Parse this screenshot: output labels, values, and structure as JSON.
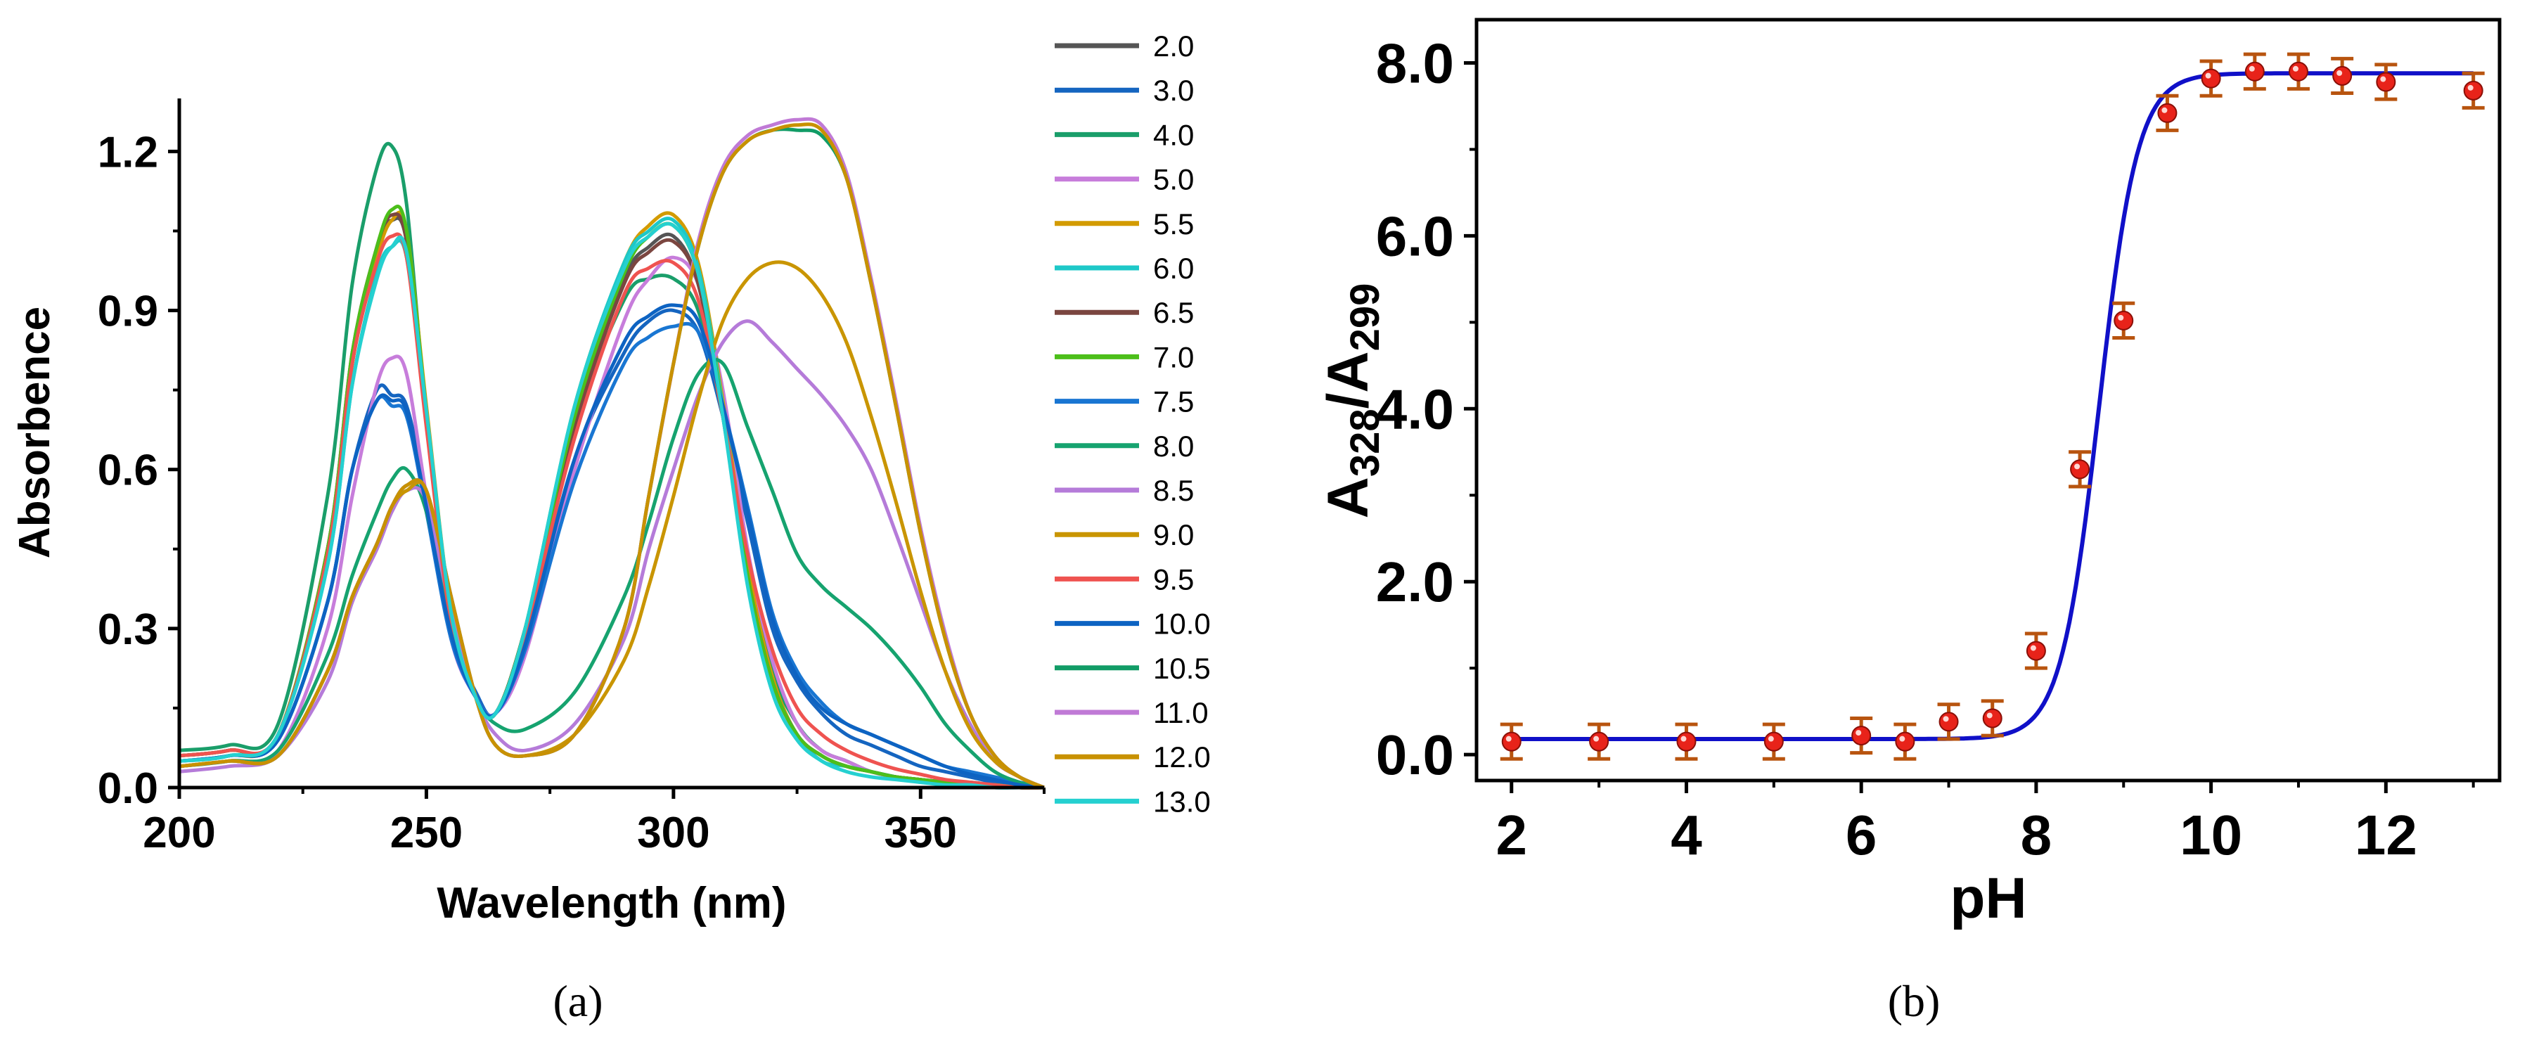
{
  "figure": {
    "panel_a_label": "(a)",
    "panel_b_label": "(b)"
  },
  "chart_data": [
    {
      "id": "a",
      "type": "line",
      "xlabel": "Wavelength (nm)",
      "ylabel": "Absorbence",
      "xlim": [
        200,
        375
      ],
      "ylim": [
        0,
        1.3
      ],
      "xticks": [
        200,
        250,
        300,
        350
      ],
      "xtick_labels": [
        "200",
        "250",
        "300",
        "350"
      ],
      "yticks": [
        0,
        0.3,
        0.6,
        0.9,
        1.2
      ],
      "ytick_labels": [
        "0.0",
        "0.3",
        "0.6",
        "0.9",
        "1.2"
      ],
      "grid": false,
      "legend_position": "right",
      "x": [
        200,
        210,
        220,
        230,
        235,
        240,
        243,
        246,
        250,
        255,
        260,
        264,
        270,
        280,
        290,
        295,
        300,
        305,
        310,
        315,
        320,
        325,
        330,
        335,
        340,
        345,
        350,
        355,
        360,
        365,
        370,
        375
      ],
      "series": [
        {
          "name": "2.0",
          "color": "#555555",
          "values": [
            0.06,
            0.07,
            0.1,
            0.45,
            0.8,
            1.02,
            1.07,
            1.03,
            0.7,
            0.32,
            0.17,
            0.14,
            0.3,
            0.7,
            0.96,
            1.02,
            1.04,
            0.95,
            0.7,
            0.4,
            0.2,
            0.1,
            0.06,
            0.04,
            0.03,
            0.02,
            0.015,
            0.01,
            0.01,
            0.005,
            0.005,
            0.0
          ]
        },
        {
          "name": "3.0",
          "color": "#1565c0",
          "values": [
            0.05,
            0.06,
            0.09,
            0.35,
            0.6,
            0.75,
            0.74,
            0.72,
            0.55,
            0.3,
            0.18,
            0.14,
            0.28,
            0.62,
            0.82,
            0.88,
            0.9,
            0.86,
            0.7,
            0.5,
            0.3,
            0.2,
            0.14,
            0.1,
            0.08,
            0.06,
            0.04,
            0.03,
            0.02,
            0.01,
            0.005,
            0.0
          ]
        },
        {
          "name": "4.0",
          "color": "#1a9e6a",
          "values": [
            0.07,
            0.08,
            0.12,
            0.55,
            0.95,
            1.17,
            1.21,
            1.1,
            0.7,
            0.32,
            0.17,
            0.14,
            0.3,
            0.68,
            0.92,
            0.96,
            0.96,
            0.9,
            0.7,
            0.42,
            0.22,
            0.12,
            0.07,
            0.05,
            0.03,
            0.02,
            0.015,
            0.01,
            0.005,
            0.005,
            0.0,
            0.0
          ]
        },
        {
          "name": "5.0",
          "color": "#c77ddb",
          "values": [
            0.04,
            0.05,
            0.07,
            0.3,
            0.55,
            0.76,
            0.81,
            0.78,
            0.55,
            0.28,
            0.17,
            0.14,
            0.25,
            0.6,
            0.88,
            0.96,
            1.0,
            0.95,
            0.75,
            0.45,
            0.24,
            0.12,
            0.07,
            0.05,
            0.03,
            0.02,
            0.015,
            0.01,
            0.005,
            0.005,
            0.0,
            0.0
          ]
        },
        {
          "name": "5.5",
          "color": "#d39b00",
          "values": [
            0.05,
            0.06,
            0.1,
            0.45,
            0.8,
            1.0,
            1.07,
            1.05,
            0.72,
            0.33,
            0.17,
            0.14,
            0.3,
            0.72,
            0.99,
            1.06,
            1.08,
            0.99,
            0.73,
            0.42,
            0.21,
            0.1,
            0.06,
            0.04,
            0.03,
            0.02,
            0.015,
            0.01,
            0.005,
            0.005,
            0.0,
            0.0
          ]
        },
        {
          "name": "6.0",
          "color": "#1ec8c8",
          "values": [
            0.05,
            0.06,
            0.1,
            0.42,
            0.76,
            0.97,
            1.02,
            1.0,
            0.7,
            0.33,
            0.17,
            0.14,
            0.3,
            0.72,
            0.99,
            1.05,
            1.07,
            0.98,
            0.72,
            0.4,
            0.2,
            0.1,
            0.05,
            0.04,
            0.03,
            0.02,
            0.01,
            0.01,
            0.005,
            0.0,
            0.0,
            0.0
          ]
        },
        {
          "name": "6.5",
          "color": "#7b4640",
          "values": [
            0.06,
            0.07,
            0.1,
            0.45,
            0.82,
            1.02,
            1.08,
            1.03,
            0.7,
            0.32,
            0.17,
            0.14,
            0.3,
            0.68,
            0.95,
            1.01,
            1.03,
            0.95,
            0.7,
            0.4,
            0.2,
            0.1,
            0.06,
            0.04,
            0.03,
            0.02,
            0.015,
            0.01,
            0.005,
            0.005,
            0.0,
            0.0
          ]
        },
        {
          "name": "7.0",
          "color": "#4cbf1a",
          "values": [
            0.06,
            0.07,
            0.1,
            0.45,
            0.82,
            1.02,
            1.09,
            1.05,
            0.71,
            0.32,
            0.17,
            0.14,
            0.3,
            0.7,
            0.97,
            1.04,
            1.06,
            0.97,
            0.71,
            0.4,
            0.2,
            0.1,
            0.06,
            0.04,
            0.03,
            0.02,
            0.015,
            0.01,
            0.005,
            0.005,
            0.0,
            0.0
          ]
        },
        {
          "name": "7.5",
          "color": "#1976d2",
          "values": [
            0.05,
            0.06,
            0.09,
            0.35,
            0.6,
            0.73,
            0.72,
            0.7,
            0.52,
            0.28,
            0.17,
            0.14,
            0.26,
            0.58,
            0.8,
            0.85,
            0.87,
            0.86,
            0.72,
            0.53,
            0.33,
            0.22,
            0.16,
            0.12,
            0.1,
            0.08,
            0.06,
            0.04,
            0.03,
            0.02,
            0.01,
            0.0
          ]
        },
        {
          "name": "8.0",
          "color": "#16a36f",
          "values": [
            0.04,
            0.05,
            0.07,
            0.25,
            0.4,
            0.52,
            0.58,
            0.6,
            0.52,
            0.3,
            0.17,
            0.12,
            0.11,
            0.18,
            0.36,
            0.5,
            0.66,
            0.78,
            0.8,
            0.68,
            0.56,
            0.44,
            0.38,
            0.34,
            0.3,
            0.25,
            0.19,
            0.12,
            0.07,
            0.03,
            0.01,
            0.0
          ]
        },
        {
          "name": "8.5",
          "color": "#b57bd9",
          "values": [
            0.03,
            0.04,
            0.06,
            0.2,
            0.35,
            0.45,
            0.52,
            0.56,
            0.54,
            0.33,
            0.17,
            0.1,
            0.07,
            0.12,
            0.28,
            0.45,
            0.6,
            0.74,
            0.84,
            0.88,
            0.84,
            0.79,
            0.74,
            0.68,
            0.6,
            0.48,
            0.35,
            0.22,
            0.12,
            0.05,
            0.02,
            0.0
          ]
        },
        {
          "name": "9.0",
          "color": "#c99500",
          "values": [
            0.04,
            0.05,
            0.06,
            0.22,
            0.36,
            0.46,
            0.53,
            0.56,
            0.56,
            0.36,
            0.17,
            0.08,
            0.06,
            0.1,
            0.24,
            0.38,
            0.55,
            0.73,
            0.88,
            0.96,
            0.99,
            0.98,
            0.93,
            0.84,
            0.7,
            0.54,
            0.37,
            0.22,
            0.11,
            0.05,
            0.02,
            0.0
          ]
        },
        {
          "name": "9.5",
          "color": "#ef5350",
          "values": [
            0.06,
            0.07,
            0.1,
            0.44,
            0.8,
            0.99,
            1.04,
            1.0,
            0.68,
            0.31,
            0.17,
            0.14,
            0.29,
            0.66,
            0.93,
            0.98,
            0.99,
            0.92,
            0.7,
            0.44,
            0.26,
            0.15,
            0.1,
            0.07,
            0.05,
            0.035,
            0.025,
            0.015,
            0.01,
            0.005,
            0.0,
            0.0
          ]
        },
        {
          "name": "10.0",
          "color": "#0d63c2",
          "values": [
            0.05,
            0.06,
            0.09,
            0.35,
            0.6,
            0.73,
            0.73,
            0.71,
            0.53,
            0.29,
            0.17,
            0.14,
            0.27,
            0.62,
            0.84,
            0.89,
            0.91,
            0.88,
            0.72,
            0.52,
            0.32,
            0.21,
            0.15,
            0.12,
            0.1,
            0.08,
            0.06,
            0.04,
            0.025,
            0.015,
            0.005,
            0.0
          ]
        },
        {
          "name": "10.5",
          "color": "#119c66",
          "values": [
            0.04,
            0.05,
            0.06,
            0.22,
            0.36,
            0.46,
            0.53,
            0.57,
            0.56,
            0.36,
            0.17,
            0.08,
            0.06,
            0.1,
            0.3,
            0.55,
            0.8,
            1.02,
            1.16,
            1.22,
            1.24,
            1.24,
            1.23,
            1.15,
            0.95,
            0.72,
            0.48,
            0.28,
            0.14,
            0.06,
            0.02,
            0.0
          ]
        },
        {
          "name": "11.0",
          "color": "#c07ad6",
          "values": [
            0.04,
            0.05,
            0.06,
            0.22,
            0.36,
            0.46,
            0.53,
            0.57,
            0.56,
            0.36,
            0.17,
            0.08,
            0.06,
            0.1,
            0.3,
            0.55,
            0.8,
            1.03,
            1.17,
            1.23,
            1.25,
            1.26,
            1.25,
            1.16,
            0.96,
            0.73,
            0.49,
            0.29,
            0.14,
            0.06,
            0.02,
            0.0
          ]
        },
        {
          "name": "12.0",
          "color": "#c89100",
          "values": [
            0.04,
            0.05,
            0.06,
            0.22,
            0.36,
            0.46,
            0.53,
            0.57,
            0.56,
            0.36,
            0.17,
            0.08,
            0.06,
            0.1,
            0.3,
            0.55,
            0.8,
            1.02,
            1.16,
            1.22,
            1.24,
            1.25,
            1.24,
            1.15,
            0.95,
            0.72,
            0.48,
            0.28,
            0.14,
            0.06,
            0.02,
            0.0
          ]
        },
        {
          "name": "13.0",
          "color": "#25d0d0",
          "values": [
            0.05,
            0.06,
            0.1,
            0.42,
            0.76,
            0.96,
            1.02,
            1.01,
            0.71,
            0.33,
            0.17,
            0.14,
            0.3,
            0.72,
            0.98,
            1.04,
            1.06,
            0.97,
            0.7,
            0.38,
            0.18,
            0.09,
            0.05,
            0.03,
            0.02,
            0.015,
            0.01,
            0.005,
            0.005,
            0.0,
            0.0,
            0.0
          ]
        }
      ]
    },
    {
      "id": "b",
      "type": "scatter",
      "xlabel": "pH",
      "ylabel_main": "A",
      "ylabel_sub1": "328",
      "ylabel_mid": "/A",
      "ylabel_sub2": "299",
      "xlim": [
        1.6,
        13.3
      ],
      "ylim": [
        -0.3,
        8.5
      ],
      "xticks": [
        2,
        4,
        6,
        8,
        10,
        12
      ],
      "xtick_labels": [
        "2",
        "4",
        "6",
        "8",
        "10",
        "12"
      ],
      "yticks": [
        0,
        2,
        4,
        6,
        8
      ],
      "ytick_labels": [
        "0.0",
        "2.0",
        "4.0",
        "6.0",
        "8.0"
      ],
      "grid": false,
      "points": {
        "x": [
          2,
          3,
          4,
          5,
          6,
          6.5,
          7,
          7.5,
          8,
          8.5,
          9,
          9.5,
          10,
          10.5,
          11,
          11.5,
          12,
          13
        ],
        "y": [
          0.15,
          0.15,
          0.15,
          0.15,
          0.22,
          0.15,
          0.38,
          0.42,
          1.2,
          3.3,
          5.02,
          7.42,
          7.82,
          7.9,
          7.9,
          7.85,
          7.78,
          7.68
        ],
        "err": [
          0.2,
          0.2,
          0.2,
          0.2,
          0.2,
          0.2,
          0.2,
          0.2,
          0.2,
          0.2,
          0.2,
          0.2,
          0.2,
          0.2,
          0.2,
          0.2,
          0.2,
          0.2
        ],
        "marker_color": "#e8231a",
        "error_color": "#b8540f"
      },
      "fit": {
        "model": "sigmoid",
        "bottom": 0.18,
        "top": 7.88,
        "x0": 8.72,
        "dx": 0.22,
        "color": "#1010c8"
      }
    }
  ]
}
